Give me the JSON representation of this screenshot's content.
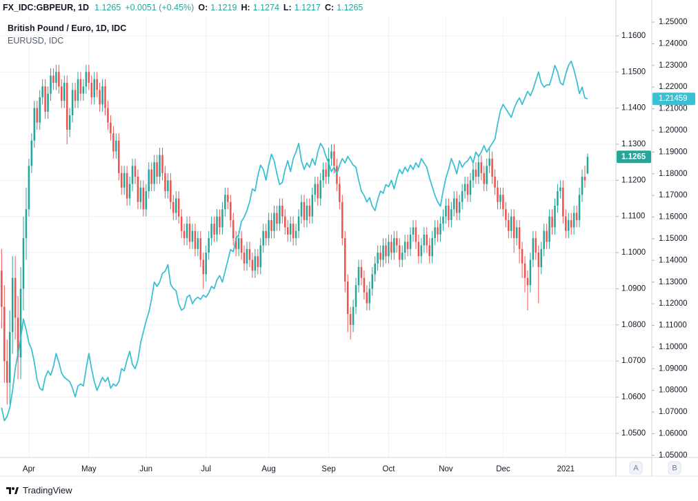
{
  "chart_data": {
    "type": "candlestick",
    "symbol": "FX_IDC:GBPEUR, 1D",
    "change": "+0.0051 (+0.45%)",
    "ohlc_labels": [
      "O:",
      "H:",
      "L:",
      "C:"
    ],
    "title": "British Pound / Euro, 1D, IDC",
    "up_color": "#26a69a",
    "down_color": "#ef5350",
    "grid": true,
    "buttons": [
      "A",
      "B"
    ],
    "categories": [
      null,
      null,
      null,
      null,
      null,
      null,
      null,
      null,
      null,
      null,
      "Apr",
      null,
      null,
      null,
      null,
      null,
      null,
      null,
      null,
      null,
      null,
      null,
      null,
      null,
      null,
      null,
      null,
      null,
      null,
      null,
      null,
      null,
      "May",
      null,
      null,
      null,
      null,
      null,
      null,
      null,
      null,
      null,
      null,
      null,
      null,
      null,
      null,
      null,
      null,
      null,
      null,
      null,
      null,
      "Jun",
      null,
      null,
      null,
      null,
      null,
      null,
      null,
      null,
      null,
      null,
      null,
      null,
      null,
      null,
      null,
      null,
      null,
      null,
      null,
      null,
      null,
      "Jul",
      null,
      null,
      null,
      null,
      null,
      null,
      null,
      null,
      null,
      null,
      null,
      null,
      null,
      null,
      null,
      null,
      null,
      null,
      null,
      null,
      null,
      null,
      "Aug",
      null,
      null,
      null,
      null,
      null,
      null,
      null,
      null,
      null,
      null,
      null,
      null,
      null,
      null,
      null,
      null,
      null,
      null,
      null,
      null,
      null,
      "Sep",
      null,
      null,
      null,
      null,
      null,
      null,
      null,
      null,
      null,
      null,
      null,
      null,
      null,
      null,
      null,
      null,
      null,
      null,
      null,
      null,
      null,
      "Oct",
      null,
      null,
      null,
      null,
      null,
      null,
      null,
      null,
      null,
      null,
      null,
      null,
      null,
      null,
      null,
      null,
      null,
      null,
      null,
      null,
      "Nov",
      null,
      null,
      null,
      null,
      null,
      null,
      null,
      null,
      null,
      null,
      null,
      null,
      null,
      null,
      null,
      null,
      null,
      null,
      null,
      null,
      "Dec",
      null,
      null,
      null,
      null,
      null,
      null,
      null,
      null,
      null,
      null,
      null,
      null,
      null,
      null,
      null,
      null,
      null,
      null,
      null,
      null,
      null,
      null,
      "2021",
      null,
      null,
      null,
      null,
      null,
      null,
      null,
      null
    ],
    "open": [
      1.095,
      1.085,
      1.07,
      1.064,
      1.078,
      1.093,
      1.082,
      1.071,
      1.09,
      1.104,
      1.112,
      1.124,
      1.131,
      1.14,
      1.136,
      1.143,
      1.146,
      1.139,
      1.144,
      1.149,
      1.147,
      1.15,
      1.146,
      1.142,
      1.147,
      1.134,
      1.138,
      1.145,
      1.142,
      1.148,
      1.144,
      1.146,
      1.15,
      1.147,
      1.143,
      1.148,
      1.145,
      1.141,
      1.146,
      1.14,
      1.136,
      1.133,
      1.128,
      1.131,
      1.122,
      1.118,
      1.122,
      1.115,
      1.119,
      1.124,
      1.121,
      1.114,
      1.118,
      1.112,
      1.117,
      1.123,
      1.119,
      1.125,
      1.121,
      1.127,
      1.122,
      1.117,
      1.12,
      1.114,
      1.111,
      1.115,
      1.11,
      1.106,
      1.104,
      1.108,
      1.103,
      1.106,
      1.101,
      1.104,
      1.098,
      1.094,
      1.1,
      1.104,
      1.108,
      1.105,
      1.11,
      1.107,
      1.112,
      1.116,
      1.114,
      1.109,
      1.104,
      1.101,
      1.104,
      1.1,
      1.097,
      1.101,
      1.098,
      1.095,
      1.099,
      1.096,
      1.102,
      1.106,
      1.104,
      1.109,
      1.106,
      1.111,
      1.108,
      1.113,
      1.11,
      1.107,
      1.105,
      1.108,
      1.104,
      1.106,
      1.11,
      1.114,
      1.109,
      1.113,
      1.11,
      1.116,
      1.119,
      1.115,
      1.12,
      1.123,
      1.121,
      1.126,
      1.128,
      1.124,
      1.119,
      1.114,
      1.104,
      1.092,
      1.083,
      1.08,
      1.085,
      1.091,
      1.096,
      1.093,
      1.089,
      1.086,
      1.09,
      1.094,
      1.097,
      1.1,
      1.098,
      1.102,
      1.099,
      1.103,
      1.1,
      1.104,
      1.102,
      1.098,
      1.1,
      1.103,
      1.101,
      1.105,
      1.107,
      1.103,
      1.099,
      1.102,
      1.105,
      1.102,
      1.099,
      1.104,
      1.107,
      1.105,
      1.108,
      1.11,
      1.113,
      1.109,
      1.112,
      1.115,
      1.111,
      1.114,
      1.117,
      1.119,
      1.116,
      1.12,
      1.123,
      1.121,
      1.125,
      1.122,
      1.119,
      1.124,
      1.126,
      1.121,
      1.118,
      1.114,
      1.116,
      1.112,
      1.109,
      1.106,
      1.11,
      1.104,
      1.107,
      1.101,
      1.097,
      1.093,
      1.091,
      1.098,
      1.104,
      1.1,
      1.096,
      1.101,
      1.106,
      1.103,
      1.11,
      1.107,
      1.113,
      1.117,
      1.118,
      1.11,
      1.106,
      1.109,
      1.107,
      1.111,
      1.109,
      1.116,
      1.121,
      1.1219
    ],
    "high": [
      1.101,
      1.091,
      1.076,
      1.084,
      1.099,
      1.099,
      1.088,
      1.096,
      1.11,
      1.118,
      1.126,
      1.133,
      1.142,
      1.142,
      1.145,
      1.148,
      1.148,
      1.146,
      1.151,
      1.151,
      1.152,
      1.152,
      1.148,
      1.149,
      1.149,
      1.14,
      1.147,
      1.147,
      1.15,
      1.15,
      1.148,
      1.152,
      1.152,
      1.149,
      1.15,
      1.15,
      1.147,
      1.148,
      1.148,
      1.142,
      1.138,
      1.135,
      1.133,
      1.133,
      1.124,
      1.124,
      1.124,
      1.121,
      1.126,
      1.126,
      1.123,
      1.12,
      1.12,
      1.119,
      1.125,
      1.125,
      1.127,
      1.127,
      1.129,
      1.129,
      1.124,
      1.122,
      1.122,
      1.116,
      1.117,
      1.117,
      1.112,
      1.108,
      1.11,
      1.11,
      1.108,
      1.108,
      1.106,
      1.106,
      1.1,
      1.102,
      1.106,
      1.11,
      1.11,
      1.112,
      1.112,
      1.114,
      1.118,
      1.118,
      1.116,
      1.111,
      1.106,
      1.106,
      1.106,
      1.102,
      1.103,
      1.103,
      1.1,
      1.101,
      1.101,
      1.104,
      1.108,
      1.108,
      1.111,
      1.111,
      1.113,
      1.113,
      1.115,
      1.115,
      1.112,
      1.109,
      1.11,
      1.11,
      1.108,
      1.112,
      1.116,
      1.116,
      1.115,
      1.115,
      1.118,
      1.121,
      1.121,
      1.122,
      1.125,
      1.125,
      1.129,
      1.13,
      1.13,
      1.126,
      1.121,
      1.116,
      1.106,
      1.094,
      1.085,
      1.087,
      1.093,
      1.098,
      1.098,
      1.095,
      1.091,
      1.092,
      1.096,
      1.099,
      1.102,
      1.102,
      1.104,
      1.104,
      1.105,
      1.105,
      1.106,
      1.106,
      1.104,
      1.102,
      1.105,
      1.105,
      1.107,
      1.109,
      1.109,
      1.105,
      1.104,
      1.107,
      1.107,
      1.104,
      1.106,
      1.109,
      1.109,
      1.11,
      1.112,
      1.115,
      1.115,
      1.114,
      1.117,
      1.117,
      1.116,
      1.119,
      1.121,
      1.121,
      1.122,
      1.125,
      1.125,
      1.127,
      1.127,
      1.124,
      1.126,
      1.129,
      1.128,
      1.123,
      1.12,
      1.118,
      1.118,
      1.114,
      1.111,
      1.112,
      1.112,
      1.109,
      1.109,
      1.103,
      1.099,
      1.095,
      1.1,
      1.106,
      1.106,
      1.102,
      1.103,
      1.108,
      1.108,
      1.112,
      1.112,
      1.115,
      1.119,
      1.12,
      1.12,
      1.112,
      1.111,
      1.111,
      1.113,
      1.113,
      1.118,
      1.123,
      1.124,
      1.1274
    ],
    "low": [
      1.079,
      1.064,
      1.058,
      1.058,
      1.072,
      1.076,
      1.065,
      1.065,
      1.084,
      1.098,
      1.11,
      1.122,
      1.129,
      1.134,
      1.134,
      1.141,
      1.137,
      1.137,
      1.142,
      1.145,
      1.145,
      1.144,
      1.14,
      1.14,
      1.13,
      1.132,
      1.136,
      1.14,
      1.14,
      1.142,
      1.142,
      1.144,
      1.145,
      1.141,
      1.141,
      1.143,
      1.139,
      1.139,
      1.138,
      1.134,
      1.131,
      1.126,
      1.126,
      1.12,
      1.116,
      1.116,
      1.113,
      1.113,
      1.117,
      1.119,
      1.112,
      1.112,
      1.11,
      1.11,
      1.115,
      1.117,
      1.117,
      1.119,
      1.119,
      1.12,
      1.115,
      1.115,
      1.112,
      1.109,
      1.109,
      1.108,
      1.104,
      1.102,
      1.102,
      1.101,
      1.101,
      1.099,
      1.099,
      1.096,
      1.09,
      1.092,
      1.098,
      1.102,
      1.103,
      1.103,
      1.105,
      1.105,
      1.11,
      1.112,
      1.107,
      1.102,
      1.099,
      1.099,
      1.098,
      1.095,
      1.095,
      1.096,
      1.093,
      1.093,
      1.094,
      1.094,
      1.1,
      1.102,
      1.102,
      1.104,
      1.104,
      1.106,
      1.106,
      1.108,
      1.105,
      1.103,
      1.103,
      1.102,
      1.102,
      1.104,
      1.108,
      1.107,
      1.107,
      1.108,
      1.108,
      1.114,
      1.113,
      1.113,
      1.118,
      1.119,
      1.119,
      1.124,
      1.122,
      1.117,
      1.112,
      1.102,
      1.089,
      1.078,
      1.076,
      1.078,
      1.083,
      1.089,
      1.091,
      1.087,
      1.084,
      1.084,
      1.088,
      1.092,
      1.095,
      1.096,
      1.096,
      1.097,
      1.097,
      1.098,
      1.098,
      1.1,
      1.096,
      1.096,
      1.098,
      1.099,
      1.099,
      1.103,
      1.101,
      1.097,
      1.097,
      1.1,
      1.1,
      1.097,
      1.097,
      1.102,
      1.103,
      1.103,
      1.106,
      1.108,
      1.107,
      1.107,
      1.11,
      1.109,
      1.109,
      1.112,
      1.115,
      1.114,
      1.114,
      1.118,
      1.119,
      1.119,
      1.12,
      1.117,
      1.117,
      1.122,
      1.119,
      1.116,
      1.112,
      1.112,
      1.11,
      1.107,
      1.104,
      1.104,
      1.1,
      1.102,
      1.097,
      1.093,
      1.089,
      1.084,
      1.089,
      1.096,
      1.098,
      1.086,
      1.094,
      1.099,
      1.101,
      1.101,
      1.105,
      1.105,
      1.111,
      1.115,
      1.108,
      1.104,
      1.104,
      1.105,
      1.105,
      1.107,
      1.107,
      1.114,
      1.118,
      1.1217
    ],
    "close": [
      1.085,
      1.07,
      1.064,
      1.078,
      1.093,
      1.082,
      1.071,
      1.09,
      1.104,
      1.112,
      1.124,
      1.131,
      1.14,
      1.136,
      1.143,
      1.146,
      1.139,
      1.144,
      1.149,
      1.147,
      1.15,
      1.146,
      1.142,
      1.147,
      1.134,
      1.138,
      1.145,
      1.142,
      1.148,
      1.144,
      1.146,
      1.15,
      1.147,
      1.143,
      1.148,
      1.145,
      1.141,
      1.146,
      1.14,
      1.136,
      1.133,
      1.128,
      1.131,
      1.122,
      1.118,
      1.122,
      1.115,
      1.119,
      1.124,
      1.121,
      1.114,
      1.118,
      1.112,
      1.117,
      1.123,
      1.119,
      1.125,
      1.121,
      1.127,
      1.122,
      1.117,
      1.12,
      1.114,
      1.111,
      1.115,
      1.11,
      1.106,
      1.104,
      1.108,
      1.103,
      1.106,
      1.101,
      1.104,
      1.098,
      1.094,
      1.1,
      1.104,
      1.108,
      1.105,
      1.11,
      1.107,
      1.112,
      1.116,
      1.114,
      1.109,
      1.104,
      1.101,
      1.104,
      1.1,
      1.097,
      1.101,
      1.098,
      1.095,
      1.099,
      1.096,
      1.102,
      1.106,
      1.104,
      1.109,
      1.106,
      1.111,
      1.108,
      1.113,
      1.11,
      1.107,
      1.105,
      1.108,
      1.104,
      1.106,
      1.11,
      1.114,
      1.109,
      1.113,
      1.11,
      1.116,
      1.119,
      1.115,
      1.12,
      1.123,
      1.121,
      1.126,
      1.128,
      1.124,
      1.119,
      1.114,
      1.104,
      1.092,
      1.083,
      1.08,
      1.085,
      1.091,
      1.096,
      1.093,
      1.089,
      1.086,
      1.09,
      1.094,
      1.097,
      1.1,
      1.098,
      1.102,
      1.099,
      1.103,
      1.1,
      1.104,
      1.102,
      1.098,
      1.1,
      1.103,
      1.101,
      1.105,
      1.107,
      1.103,
      1.099,
      1.102,
      1.105,
      1.102,
      1.099,
      1.104,
      1.107,
      1.105,
      1.108,
      1.11,
      1.113,
      1.109,
      1.112,
      1.115,
      1.111,
      1.114,
      1.117,
      1.119,
      1.116,
      1.12,
      1.123,
      1.121,
      1.125,
      1.122,
      1.119,
      1.124,
      1.126,
      1.121,
      1.118,
      1.114,
      1.116,
      1.112,
      1.109,
      1.106,
      1.11,
      1.104,
      1.107,
      1.101,
      1.097,
      1.093,
      1.091,
      1.098,
      1.104,
      1.1,
      1.096,
      1.101,
      1.106,
      1.103,
      1.11,
      1.107,
      1.113,
      1.117,
      1.118,
      1.11,
      1.106,
      1.109,
      1.107,
      1.111,
      1.109,
      1.116,
      1.121,
      1.12,
      1.1265
    ],
    "ylim": [
      1.0433,
      1.1657
    ],
    "yticks": [
      {
        "value": 1.05,
        "label": "1.0500"
      },
      {
        "value": 1.06,
        "label": "1.0600"
      },
      {
        "value": 1.07,
        "label": "1.0700"
      },
      {
        "value": 1.08,
        "label": "1.0800"
      },
      {
        "value": 1.09,
        "label": "1.0900"
      },
      {
        "value": 1.1,
        "label": "1.1000"
      },
      {
        "value": 1.11,
        "label": "1.1100"
      },
      {
        "value": 1.12,
        "label": "1.1200"
      },
      {
        "value": 1.13,
        "label": "1.1300"
      },
      {
        "value": 1.14,
        "label": "1.1400"
      },
      {
        "value": 1.15,
        "label": "1.1500"
      },
      {
        "value": 1.16,
        "label": "1.1600"
      }
    ],
    "y2lim": [
      1.049,
      1.2532
    ],
    "y2ticks": [
      {
        "value": 1.05,
        "label": "1.05000"
      },
      {
        "value": 1.06,
        "label": "1.06000"
      },
      {
        "value": 1.07,
        "label": "1.07000"
      },
      {
        "value": 1.08,
        "label": "1.08000"
      },
      {
        "value": 1.09,
        "label": "1.09000"
      },
      {
        "value": 1.1,
        "label": "1.10000"
      },
      {
        "value": 1.11,
        "label": "1.11000"
      },
      {
        "value": 1.12,
        "label": "1.12000"
      },
      {
        "value": 1.13,
        "label": "1.13000"
      },
      {
        "value": 1.14,
        "label": "1.14000"
      },
      {
        "value": 1.15,
        "label": "1.15000"
      },
      {
        "value": 1.16,
        "label": "1.16000"
      },
      {
        "value": 1.17,
        "label": "1.17000"
      },
      {
        "value": 1.18,
        "label": "1.18000"
      },
      {
        "value": 1.19,
        "label": "1.19000"
      },
      {
        "value": 1.2,
        "label": "1.20000"
      },
      {
        "value": 1.21,
        "label": "1.21000"
      },
      {
        "value": 1.22,
        "label": "1.22000"
      },
      {
        "value": 1.23,
        "label": "1.23000"
      },
      {
        "value": 1.24,
        "label": "1.24000"
      },
      {
        "value": 1.25,
        "label": "1.25000"
      }
    ],
    "overlay": {
      "name": "EURUSD, IDC",
      "color": "#3ac0d2",
      "axis": "y2",
      "values": [
        1.072,
        1.066,
        1.068,
        1.072,
        1.08,
        1.09,
        1.097,
        1.104,
        1.113,
        1.108,
        1.102,
        1.099,
        1.093,
        1.085,
        1.081,
        1.08,
        1.086,
        1.089,
        1.087,
        1.091,
        1.097,
        1.093,
        1.088,
        1.086,
        1.085,
        1.084,
        1.081,
        1.077,
        1.082,
        1.083,
        1.082,
        1.09,
        1.097,
        1.09,
        1.084,
        1.08,
        1.083,
        1.086,
        1.084,
        1.086,
        1.081,
        1.083,
        1.082,
        1.084,
        1.09,
        1.089,
        1.094,
        1.098,
        1.092,
        1.09,
        1.094,
        1.102,
        1.107,
        1.112,
        1.116,
        1.122,
        1.13,
        1.128,
        1.13,
        1.134,
        1.135,
        1.138,
        1.129,
        1.127,
        1.126,
        1.12,
        1.117,
        1.118,
        1.123,
        1.124,
        1.12,
        1.122,
        1.123,
        1.122,
        1.124,
        1.123,
        1.125,
        1.128,
        1.127,
        1.131,
        1.133,
        1.13,
        1.135,
        1.14,
        1.145,
        1.144,
        1.15,
        1.152,
        1.158,
        1.16,
        1.163,
        1.167,
        1.173,
        1.172,
        1.179,
        1.184,
        1.182,
        1.177,
        1.184,
        1.189,
        1.186,
        1.18,
        1.175,
        1.176,
        1.182,
        1.186,
        1.181,
        1.187,
        1.19,
        1.194,
        1.186,
        1.182,
        1.185,
        1.183,
        1.187,
        1.184,
        1.19,
        1.194,
        1.192,
        1.188,
        1.185,
        1.181,
        1.183,
        1.18,
        1.184,
        1.187,
        1.185,
        1.188,
        1.186,
        1.184,
        1.183,
        1.177,
        1.172,
        1.17,
        1.167,
        1.169,
        1.165,
        1.163,
        1.168,
        1.172,
        1.171,
        1.175,
        1.174,
        1.177,
        1.173,
        1.178,
        1.182,
        1.18,
        1.183,
        1.181,
        1.184,
        1.182,
        1.185,
        1.183,
        1.187,
        1.185,
        1.183,
        1.178,
        1.174,
        1.17,
        1.167,
        1.165,
        1.172,
        1.178,
        1.182,
        1.187,
        1.184,
        1.18,
        1.186,
        1.183,
        1.185,
        1.186,
        1.188,
        1.185,
        1.19,
        1.188,
        1.19,
        1.193,
        1.19,
        1.192,
        1.194,
        1.196,
        1.203,
        1.209,
        1.212,
        1.21,
        1.208,
        1.206,
        1.21,
        1.213,
        1.215,
        1.212,
        1.215,
        1.218,
        1.216,
        1.219,
        1.223,
        1.227,
        1.222,
        1.22,
        1.221,
        1.221,
        1.225,
        1.23,
        1.227,
        1.222,
        1.221,
        1.226,
        1.23,
        1.232,
        1.228,
        1.223,
        1.217,
        1.22,
        1.215,
        1.21459
      ]
    }
  },
  "footer": {
    "brand": "TradingView"
  }
}
